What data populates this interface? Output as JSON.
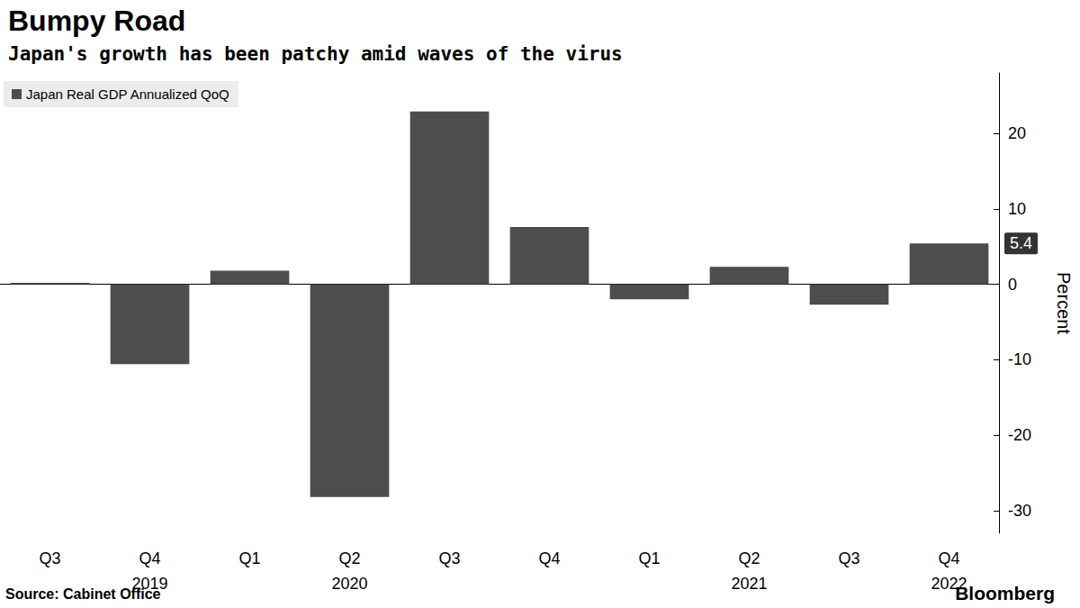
{
  "chart_data": {
    "type": "bar",
    "title": "Bumpy Road",
    "subtitle": "Japan's growth has been patchy amid waves of the virus",
    "categories": [
      "Q3",
      "Q4\n2019",
      "Q1",
      "Q2\n2020",
      "Q3",
      "Q4",
      "Q1",
      "Q2\n2021",
      "Q3",
      "Q4\n2022"
    ],
    "series": [
      {
        "name": "Japan Real GDP Annualized QoQ",
        "color": "#4d4d4d",
        "values": [
          0.2,
          -10.6,
          1.8,
          -28.2,
          22.9,
          7.6,
          -2.0,
          2.3,
          -2.7,
          5.4
        ]
      }
    ],
    "ylabel": "Percent",
    "ylim": [
      -33,
      28
    ],
    "yticks": [
      -30,
      -20,
      -10,
      0,
      10,
      20
    ],
    "annotations": [
      {
        "label": "5.4",
        "value": 5.4
      }
    ],
    "source": "Source: Cabinet Office",
    "brand": "Bloomberg",
    "grid": false,
    "legend": "upper left"
  }
}
